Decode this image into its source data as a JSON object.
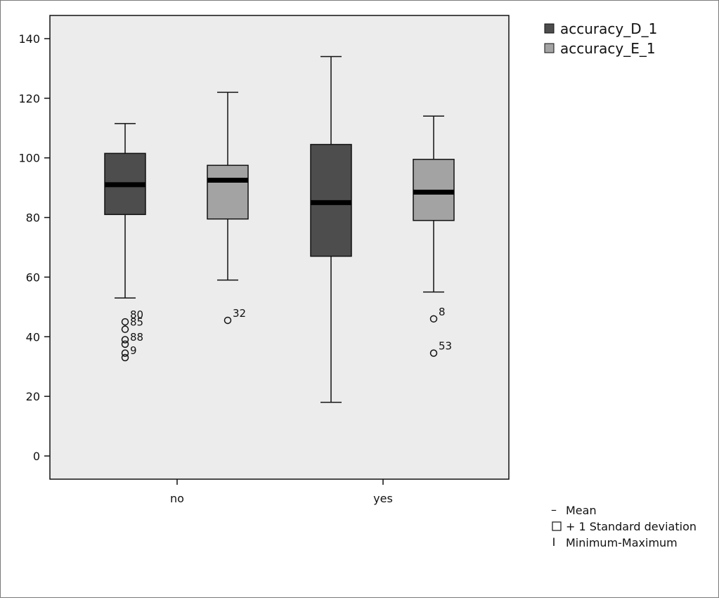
{
  "chart_data": {
    "type": "box",
    "categories": [
      "no",
      "yes"
    ],
    "ylim": [
      -8,
      148
    ],
    "yticks": [
      0,
      20,
      40,
      60,
      80,
      100,
      120,
      140
    ],
    "series": [
      {
        "name": "accuracy_D_1",
        "color": "#4d4d4d",
        "boxes": [
          {
            "category": "no",
            "min": 53,
            "q1": 81,
            "mean": 91,
            "q3": 101.5,
            "max": 111.5,
            "outliers": [
              {
                "y": 45,
                "label": "80"
              },
              {
                "y": 42.5,
                "label": "85"
              },
              {
                "y": 39,
                "label": ""
              },
              {
                "y": 37.5,
                "label": "88"
              },
              {
                "y": 34.5,
                "label": ""
              },
              {
                "y": 33,
                "label": "9"
              }
            ]
          },
          {
            "category": "yes",
            "min": 18,
            "q1": 67,
            "mean": 85,
            "q3": 104.5,
            "max": 134,
            "outliers": []
          }
        ]
      },
      {
        "name": "accuracy_E_1",
        "color": "#a3a3a3",
        "boxes": [
          {
            "category": "no",
            "min": 59,
            "q1": 79.5,
            "mean": 92.5,
            "q3": 97.5,
            "max": 122,
            "outliers": [
              {
                "y": 45.5,
                "label": "32"
              }
            ]
          },
          {
            "category": "yes",
            "min": 55,
            "q1": 79,
            "mean": 88.5,
            "q3": 99.5,
            "max": 114,
            "outliers": [
              {
                "y": 46,
                "label": "8"
              },
              {
                "y": 34.5,
                "label": "53"
              }
            ]
          }
        ]
      }
    ],
    "legend": {
      "placement": "top-right"
    },
    "key": [
      {
        "symbol": "–",
        "text": "Mean"
      },
      {
        "symbol": "box",
        "text": "+ 1 Standard deviation"
      },
      {
        "symbol": "I",
        "text": "Minimum-Maximum"
      }
    ]
  }
}
